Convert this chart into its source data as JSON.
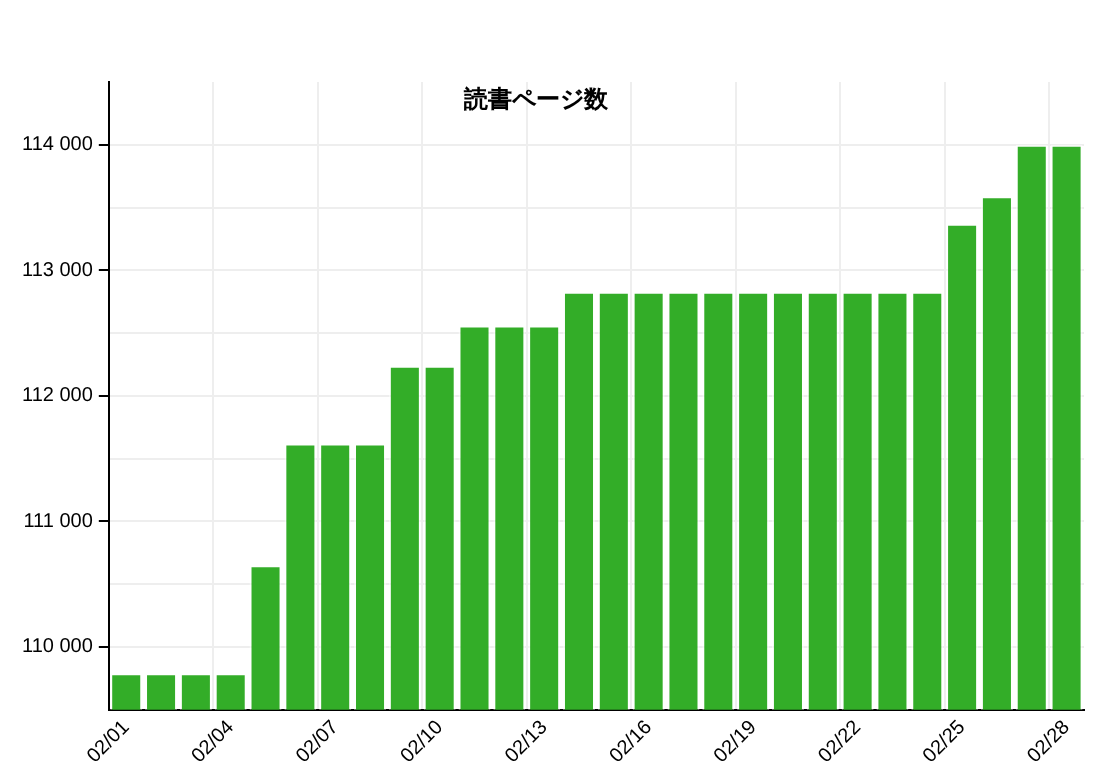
{
  "chart_data": {
    "type": "bar",
    "title": "読書ページ数",
    "categories": [
      "02/01",
      null,
      null,
      "02/04",
      null,
      null,
      "02/07",
      null,
      null,
      "02/10",
      null,
      null,
      "02/13",
      null,
      null,
      "02/16",
      null,
      null,
      "02/19",
      null,
      null,
      "02/22",
      null,
      null,
      "02/25",
      null,
      null,
      "02/28"
    ],
    "values": [
      109790,
      109790,
      109790,
      109790,
      110650,
      111620,
      111620,
      111620,
      112240,
      112240,
      112560,
      112560,
      112560,
      112830,
      112830,
      112830,
      112830,
      112830,
      112830,
      112830,
      112830,
      112830,
      112830,
      112830,
      113370,
      113590,
      114000,
      114000
    ],
    "color": "#33ad28",
    "ylim": [
      109500,
      114500
    ],
    "yticks": [
      {
        "value": 110000,
        "label": "110 000"
      },
      {
        "value": 110500,
        "label": null
      },
      {
        "value": 111000,
        "label": "111 000"
      },
      {
        "value": 111500,
        "label": null
      },
      {
        "value": 112000,
        "label": "112 000"
      },
      {
        "value": 112500,
        "label": null
      },
      {
        "value": 113000,
        "label": "113 000"
      },
      {
        "value": 113500,
        "label": null
      },
      {
        "value": 114000,
        "label": "114 000"
      }
    ],
    "grid": true,
    "legend": false
  }
}
